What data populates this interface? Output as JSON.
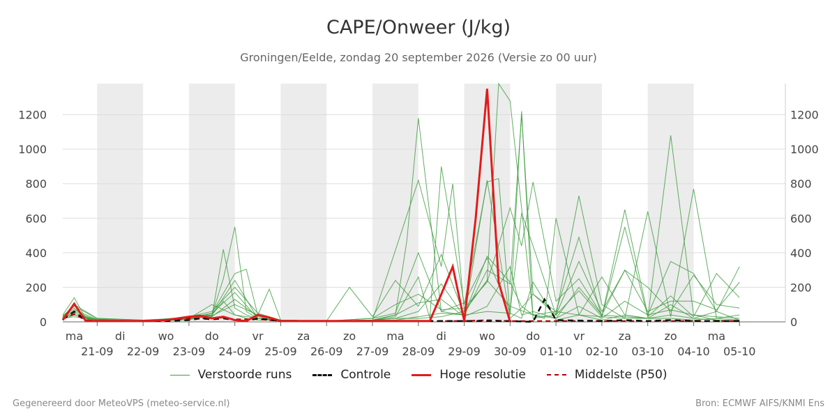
{
  "header": {
    "title": "CAPE/Onweer (J/kg)",
    "subtitle": "Groningen/Eelde, zondag 20 september 2026 (Versie zo 00 uur)"
  },
  "footer": {
    "left": "Gegenereerd door MeteoVPS (meteo-service.nl)",
    "right": "Bron: ECMWF AIFS/KNMI Ens"
  },
  "colors": {
    "ensemble": "#3a9a3a",
    "control": "#111111",
    "high_res": "#e31a1c",
    "median": "#b00000",
    "weekend_band": "#ececec",
    "grid": "#dddddd"
  },
  "chart_data": {
    "type": "line",
    "x_unit": "day index (0 = 20-09-2026)",
    "xlim": [
      -0.75,
      15
    ],
    "ylim": [
      0,
      1380
    ],
    "y_ticks": [
      0,
      200,
      400,
      600,
      800,
      1000,
      1200
    ],
    "grid": "horizontal",
    "legend_position": "bottom",
    "shaded_days": [
      [
        0,
        1
      ],
      [
        2,
        3
      ],
      [
        4,
        5
      ],
      [
        6,
        7
      ],
      [
        8,
        9
      ],
      [
        10,
        11
      ],
      [
        12,
        13
      ]
    ],
    "x_ticks": [
      {
        "x": 0,
        "day": "ma",
        "date": "21-09"
      },
      {
        "x": 1,
        "day": "di",
        "date": "22-09"
      },
      {
        "x": 2,
        "day": "wo",
        "date": "23-09"
      },
      {
        "x": 3,
        "day": "do",
        "date": "24-09"
      },
      {
        "x": 4,
        "day": "vr",
        "date": "25-09"
      },
      {
        "x": 5,
        "day": "za",
        "date": "26-09"
      },
      {
        "x": 6,
        "day": "zo",
        "date": "27-09"
      },
      {
        "x": 7,
        "day": "ma",
        "date": "28-09"
      },
      {
        "x": 8,
        "day": "di",
        "date": "29-09"
      },
      {
        "x": 9,
        "day": "wo",
        "date": "30-09"
      },
      {
        "x": 10,
        "day": "do",
        "date": "01-10"
      },
      {
        "x": 11,
        "day": "vr",
        "date": "02-10"
      },
      {
        "x": 12,
        "day": "za",
        "date": "03-10"
      },
      {
        "x": 13,
        "day": "zo",
        "date": "04-10"
      },
      {
        "x": 14,
        "day": "ma",
        "date": "05-10"
      }
    ],
    "series": [
      {
        "name": "Verstoorde runs",
        "style": "thin-green",
        "members": [
          {
            "x": [
              -0.75,
              -0.5,
              -0.25,
              0,
              0.5,
              1,
              1.5,
              2,
              2.5,
              2.75,
              3,
              3.25,
              3.5,
              4,
              5,
              6,
              6.5,
              7,
              7.5,
              8,
              8.5,
              9,
              9.5,
              10,
              10.5,
              11,
              11.5,
              12,
              12.5,
              13,
              13.5,
              14
            ],
            "y": [
              40,
              140,
              20,
              15,
              10,
              5,
              15,
              30,
              40,
              120,
              40,
              20,
              10,
              10,
              5,
              10,
              20,
              20,
              30,
              60,
              240,
              90,
              40,
              60,
              40,
              30,
              20,
              20,
              20,
              10,
              20,
              10
            ]
          },
          {
            "x": [
              -0.75,
              -0.5,
              -0.25,
              0,
              1,
              2,
              2.5,
              2.75,
              3,
              3.25,
              3.5,
              4,
              5,
              6,
              6.5,
              6.75,
              7,
              7.5,
              8,
              8.5,
              9,
              9.25,
              9.5,
              10,
              10.5,
              11,
              11.5,
              12,
              12.5,
              13,
              13.5,
              14
            ],
            "y": [
              30,
              80,
              20,
              10,
              5,
              20,
              30,
              420,
              80,
              40,
              20,
              10,
              5,
              10,
              40,
              470,
              1180,
              60,
              40,
              380,
              230,
              90,
              40,
              20,
              200,
              40,
              30,
              20,
              100,
              20,
              10,
              5
            ]
          },
          {
            "x": [
              -0.75,
              -0.5,
              0,
              1,
              2,
              2.5,
              2.75,
              3,
              3.25,
              3.5,
              4,
              5,
              6,
              7,
              7.5,
              7.75,
              8,
              8.5,
              8.75,
              9,
              9.5,
              9.75,
              10,
              10.5,
              11,
              11.5,
              12,
              12.5,
              13,
              13.5,
              14
            ],
            "y": [
              20,
              60,
              10,
              5,
              20,
              40,
              250,
              550,
              60,
              20,
              10,
              5,
              10,
              820,
              320,
              800,
              60,
              240,
              1380,
              1280,
              40,
              20,
              600,
              40,
              260,
              40,
              20,
              1080,
              40,
              10,
              5
            ]
          },
          {
            "x": [
              -0.75,
              -0.5,
              0,
              1,
              2,
              2.5,
              3,
              3.25,
              3.5,
              3.75,
              4,
              5,
              6,
              6.5,
              7,
              7.25,
              7.5,
              8,
              8.5,
              8.75,
              9,
              9.25,
              9.5,
              10,
              10.5,
              11,
              11.5,
              12,
              12.5,
              13,
              13.5,
              14
            ],
            "y": [
              30,
              100,
              20,
              10,
              25,
              50,
              280,
              305,
              40,
              190,
              10,
              5,
              10,
              30,
              260,
              20,
              900,
              100,
              810,
              830,
              40,
              1220,
              20,
              40,
              730,
              100,
              20,
              640,
              30,
              770,
              20,
              40
            ]
          },
          {
            "x": [
              -0.75,
              -0.5,
              0,
              1,
              2,
              2.5,
              3,
              3.5,
              4,
              5,
              5.5,
              6,
              6.5,
              7,
              7.5,
              8,
              8.5,
              9,
              9.25,
              9.5,
              10,
              10.5,
              11,
              11.5,
              12,
              12.5,
              13,
              13.5,
              14
            ],
            "y": [
              25,
              70,
              15,
              5,
              30,
              60,
              200,
              50,
              10,
              5,
              200,
              30,
              240,
              90,
              390,
              40,
              300,
              220,
              1200,
              160,
              60,
              490,
              30,
              650,
              40,
              350,
              280,
              60,
              320
            ]
          },
          {
            "x": [
              -0.75,
              -0.5,
              0,
              1,
              2,
              2.5,
              3,
              3.5,
              4,
              5,
              6,
              6.5,
              7,
              7.5,
              8,
              8.5,
              9,
              9.25,
              9.5,
              10,
              10.5,
              11,
              11.5,
              12,
              12.5,
              13,
              13.5,
              14
            ],
            "y": [
              35,
              90,
              20,
              10,
              20,
              30,
              130,
              30,
              10,
              5,
              20,
              100,
              160,
              70,
              80,
              230,
              660,
              440,
              810,
              120,
              250,
              40,
              300,
              60,
              120,
              120,
              70,
              230
            ]
          },
          {
            "x": [
              -0.75,
              -0.5,
              0,
              1,
              2,
              2.5,
              3,
              3.5,
              4,
              5,
              6,
              6.5,
              7,
              7.5,
              8,
              8.5,
              9,
              9.25,
              9.5,
              10,
              10.5,
              11,
              11.5,
              12,
              12.5,
              13,
              13.5,
              14
            ],
            "y": [
              20,
              50,
              10,
              5,
              15,
              40,
              240,
              20,
              10,
              5,
              20,
              50,
              400,
              60,
              110,
              370,
              60,
              630,
              440,
              40,
              180,
              30,
              550,
              30,
              150,
              30,
              280,
              140
            ]
          },
          {
            "x": [
              -0.75,
              -0.5,
              0,
              1,
              2,
              2.5,
              3,
              3.5,
              4,
              5,
              6,
              6.5,
              7,
              7.5,
              8,
              8.5,
              9,
              9.25,
              9.5,
              10,
              10.5,
              11,
              11.5,
              12,
              12.5,
              13,
              13.5,
              14
            ],
            "y": [
              30,
              40,
              15,
              5,
              25,
              35,
              100,
              40,
              10,
              5,
              10,
              20,
              60,
              220,
              30,
              820,
              20,
              80,
              160,
              40,
              350,
              60,
              300,
              200,
              60,
              270,
              100,
              80
            ]
          },
          {
            "x": [
              -0.75,
              -0.5,
              0,
              1,
              2,
              2.5,
              3,
              3.5,
              4,
              5,
              6,
              6.5,
              7,
              7.5,
              8,
              8.5,
              9,
              9.25,
              9.5,
              10,
              10.5,
              11,
              11.5,
              12,
              12.5,
              13,
              13.5,
              14
            ],
            "y": [
              20,
              30,
              10,
              5,
              20,
              100,
              40,
              20,
              10,
              5,
              10,
              40,
              110,
              130,
              30,
              90,
              320,
              40,
              60,
              20,
              90,
              20,
              120,
              40,
              70,
              40,
              30,
              20
            ]
          },
          {
            "x": [
              -0.75,
              -0.5,
              0,
              1,
              2,
              2.5,
              3,
              3.5,
              4,
              5,
              6,
              6.5,
              7,
              7.5,
              8,
              8.5,
              9,
              9.25,
              9.5,
              10,
              10.5,
              11,
              11.5,
              12,
              12.5,
              13,
              13.5,
              14
            ],
            "y": [
              15,
              40,
              10,
              5,
              10,
              50,
              170,
              20,
              10,
              5,
              10,
              10,
              30,
              50,
              40,
              60,
              50,
              20,
              230,
              10,
              40,
              10,
              40,
              20,
              40,
              20,
              60,
              10
            ]
          }
        ]
      },
      {
        "name": "Controle",
        "style": "dashed-black",
        "x": [
          -0.75,
          -0.5,
          -0.25,
          0,
          0.25,
          0.5,
          1,
          1.5,
          2,
          2.25,
          2.5,
          2.75,
          3,
          3.25,
          3.5,
          4,
          5,
          6,
          7,
          8,
          9,
          9.5,
          9.75,
          10,
          11,
          11.5,
          12,
          12.5,
          13,
          13.5,
          14
        ],
        "y": [
          15,
          60,
          10,
          5,
          5,
          5,
          5,
          5,
          10,
          20,
          15,
          20,
          10,
          5,
          20,
          5,
          5,
          5,
          5,
          5,
          5,
          0,
          130,
          10,
          5,
          10,
          5,
          10,
          5,
          5,
          5
        ]
      },
      {
        "name": "Hoge resolutie",
        "style": "solid-red",
        "x": [
          -0.75,
          -0.5,
          -0.25,
          0,
          0.25,
          0.5,
          1,
          1.5,
          2,
          2.25,
          2.5,
          2.75,
          3,
          3.25,
          3.5,
          3.75,
          4,
          5,
          6,
          7,
          7.25,
          7.5,
          7.75,
          8,
          8.25,
          8.5,
          8.75,
          9
        ],
        "y": [
          10,
          105,
          5,
          5,
          5,
          5,
          5,
          10,
          30,
          35,
          20,
          30,
          10,
          5,
          40,
          25,
          5,
          5,
          5,
          5,
          5,
          160,
          320,
          5,
          600,
          1350,
          230,
          0
        ]
      },
      {
        "name": "Middelste (P50)",
        "style": "dashed-darkred",
        "x": [
          -0.75,
          -0.5,
          -0.25,
          0,
          1,
          2,
          2.5,
          2.75,
          3,
          3.5,
          4,
          5,
          6,
          7,
          8,
          8.5,
          9,
          10,
          11,
          12,
          13,
          14
        ],
        "y": [
          20,
          45,
          10,
          5,
          5,
          20,
          20,
          25,
          15,
          15,
          5,
          5,
          5,
          5,
          5,
          10,
          5,
          5,
          5,
          5,
          5,
          5
        ]
      }
    ]
  }
}
